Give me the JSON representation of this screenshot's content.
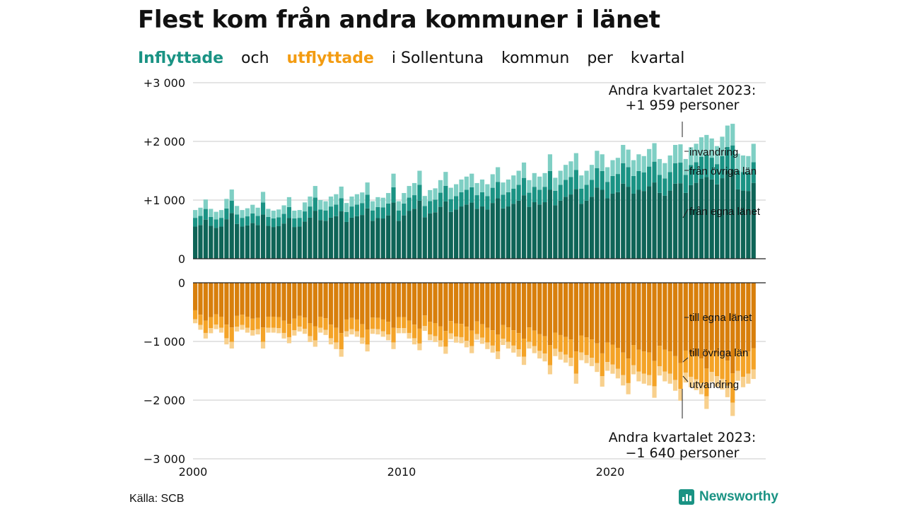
{
  "title": "Flest kom från andra kommuner i länet",
  "subtitle": {
    "part1": "Inflyttade",
    "part2": "och",
    "part3": "utflyttade",
    "part4": "i Sollentuna",
    "part5": "kommun",
    "part6": "per",
    "part7": "kvartal"
  },
  "source": "Källa: SCB",
  "brand": "Newsworthy",
  "colors": {
    "in_own": "#0e6457",
    "in_other": "#1a9384",
    "in_immig": "#7fcfc4",
    "out_own": "#d87f0c",
    "out_other": "#f4a327",
    "out_emig": "#f8d08d",
    "accent_in": "#1a9384",
    "accent_out": "#f39c12"
  },
  "chart_data": {
    "type": "bar",
    "stacked": true,
    "x_start": "2000 Q1",
    "x_end": "2023 Q2",
    "x_ticks": [
      "2000",
      "2010",
      "2020"
    ],
    "y_ticks_top": [
      "+3 000",
      "+2 000",
      "+1 000",
      "0"
    ],
    "y_ticks_bottom": [
      "0",
      "−1 000",
      "−2 000",
      "−3 000"
    ],
    "ylim_top": [
      0,
      3000
    ],
    "ylim_bottom": [
      -3000,
      0
    ],
    "series_labels": {
      "in_immig": "invandring",
      "in_other": "från övriga län",
      "in_own": "från egna länet",
      "out_own": "till egna länet",
      "out_other": "till övriga län",
      "out_emig": "utvandring"
    },
    "annotation_top": {
      "line1": "Andra kvartalet 2023:",
      "line2": "+1 959 personer"
    },
    "annotation_bottom": {
      "line1": "Andra kvartalet 2023:",
      "line2": "−1 640 personer"
    },
    "inflow_totals": [
      830,
      870,
      1010,
      850,
      800,
      830,
      1020,
      1180,
      900,
      830,
      860,
      920,
      870,
      1140,
      850,
      820,
      840,
      910,
      1050,
      820,
      830,
      960,
      1060,
      1240,
      1000,
      980,
      1060,
      1100,
      1230,
      950,
      1060,
      1100,
      1130,
      1300,
      980,
      1050,
      1040,
      1120,
      1450,
      980,
      1120,
      1240,
      1290,
      1500,
      1070,
      1170,
      1200,
      1340,
      1480,
      1210,
      1270,
      1350,
      1400,
      1450,
      1290,
      1350,
      1270,
      1440,
      1560,
      1300,
      1350,
      1420,
      1500,
      1640,
      1340,
      1460,
      1400,
      1460,
      1780,
      1380,
      1500,
      1600,
      1660,
      1800,
      1420,
      1500,
      1600,
      1840,
      1780,
      1560,
      1680,
      1720,
      1940,
      1860,
      1680,
      1780,
      1750,
      1870,
      1970,
      1700,
      1630,
      1760,
      1940,
      1950,
      1700,
      1900,
      1960,
      2070,
      2110,
      2050,
      1920,
      2080,
      2270,
      2300,
      1790,
      1760,
      1750,
      1959
    ],
    "inflow_own_share": 0.66,
    "inflow_other_share": 0.18,
    "outflow_totals": [
      690,
      800,
      950,
      860,
      790,
      850,
      1050,
      1120,
      830,
      800,
      850,
      900,
      880,
      1120,
      850,
      850,
      860,
      950,
      1030,
      900,
      830,
      870,
      1010,
      1090,
      850,
      890,
      1050,
      1130,
      1260,
      920,
      880,
      920,
      1040,
      1170,
      870,
      880,
      920,
      980,
      1130,
      860,
      860,
      950,
      1050,
      1150,
      820,
      980,
      1010,
      1090,
      1210,
      960,
      1020,
      1030,
      1100,
      1200,
      970,
      1040,
      1130,
      1190,
      1300,
      1060,
      1120,
      1190,
      1260,
      1400,
      1120,
      1200,
      1290,
      1340,
      1560,
      1250,
      1310,
      1360,
      1420,
      1720,
      1320,
      1370,
      1420,
      1520,
      1770,
      1500,
      1550,
      1630,
      1750,
      1900,
      1560,
      1680,
      1720,
      1750,
      1960,
      1580,
      1680,
      1720,
      1840,
      2010,
      1700,
      1780,
      1830,
      1900,
      2150,
      1690,
      1770,
      1820,
      1950,
      2270,
      1670,
      1780,
      1720,
      1640
    ],
    "outflow_own_share": 0.68,
    "outflow_other_share": 0.22
  }
}
